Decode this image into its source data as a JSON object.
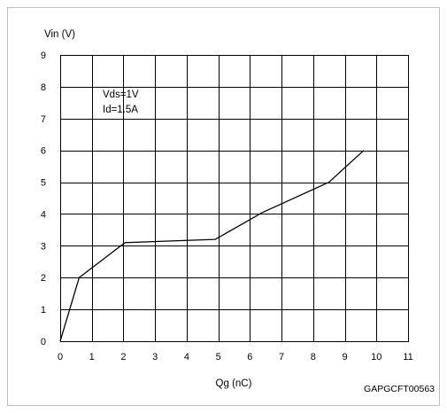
{
  "chart_data": {
    "type": "line",
    "title": "",
    "xlabel": "Qg (nC)",
    "ylabel": "Vin (V)",
    "xlim": [
      0,
      11
    ],
    "ylim": [
      0,
      9
    ],
    "xticks": [
      "0",
      "1",
      "2",
      "3",
      "4",
      "5",
      "6",
      "7",
      "8",
      "9",
      "10",
      "11"
    ],
    "yticks": [
      "0",
      "1",
      "2",
      "3",
      "4",
      "5",
      "6",
      "7",
      "8",
      "9"
    ],
    "grid": true,
    "legend": "none",
    "annotations": [
      "Vds=1V",
      "Id=1.5A"
    ],
    "figure_code": "GAPGCFT00563",
    "series": [
      {
        "x": [
          0,
          0.6,
          2.05,
          4.9,
          6.4,
          8.5,
          9.6
        ],
        "y": [
          0,
          2.0,
          3.1,
          3.2,
          4.05,
          5.0,
          6.0
        ],
        "color": "#000000"
      }
    ]
  }
}
